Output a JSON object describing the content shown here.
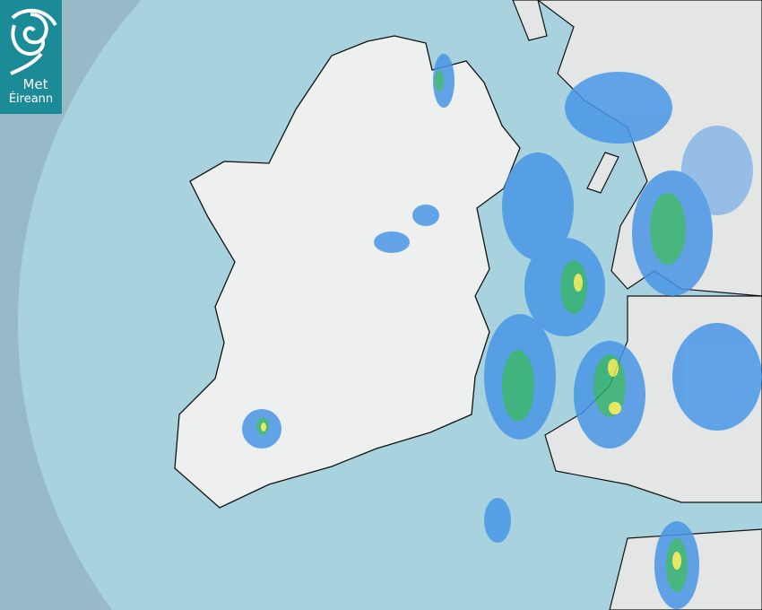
{
  "logo": {
    "line1": "Met",
    "line2": "Éireann",
    "color": "#1b8b97"
  },
  "map": {
    "type": "rainfall radar",
    "colors": {
      "sea_in_range": "#a8d3de",
      "sea_out_of_range": "#98b9c7",
      "land": "#f0f1f1",
      "light_rain": "#4a96e6",
      "moderate_rain": "#2fae6e",
      "heavy_rain": "#e9ea4c"
    }
  }
}
